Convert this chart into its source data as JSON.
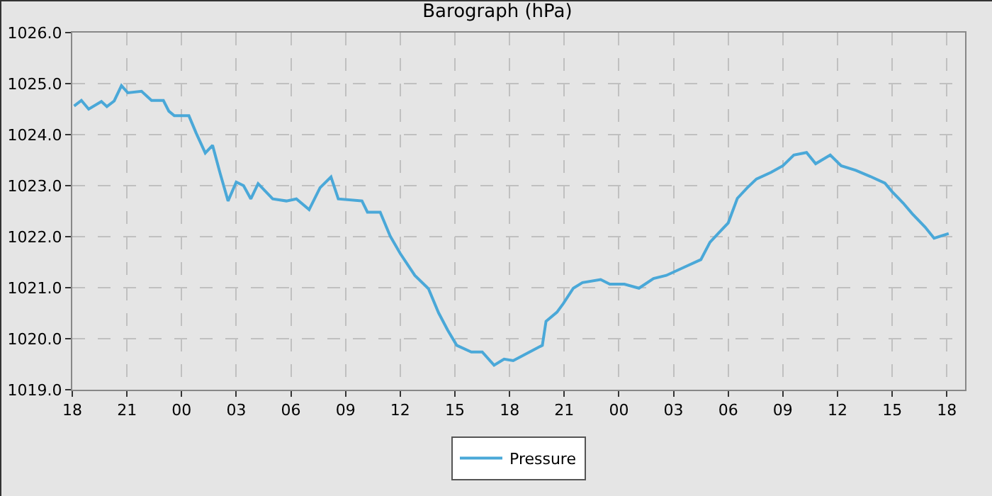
{
  "chart_data": {
    "type": "line",
    "title": "Barograph (hPa)",
    "series": [
      {
        "name": "Pressure",
        "color": "#4aa8d8",
        "x": [
          18.1,
          18.5,
          18.9,
          19.6,
          19.9,
          20.3,
          20.7,
          21.05,
          21.8,
          22.35,
          23.0,
          23.3,
          23.6,
          24.4,
          24.8,
          25.3,
          25.7,
          26.1,
          26.55,
          27.0,
          27.4,
          27.8,
          28.2,
          29.0,
          29.75,
          30.3,
          31.0,
          31.6,
          32.2,
          32.6,
          33.9,
          34.2,
          34.9,
          35.45,
          36.0,
          36.8,
          37.55,
          38.1,
          38.6,
          39.1,
          39.9,
          40.5,
          41.15,
          41.7,
          42.2,
          43.1,
          43.8,
          44.0,
          44.6,
          44.95,
          45.5,
          46.0,
          47.0,
          47.5,
          48.3,
          49.1,
          49.9,
          50.6,
          51.7,
          52.5,
          53.0,
          53.5,
          54.0,
          54.5,
          55.05,
          55.55,
          56.35,
          57.0,
          57.6,
          58.3,
          58.8,
          59.6,
          60.2,
          61.0,
          61.8,
          62.6,
          63.0,
          63.6,
          64.1,
          64.8,
          65.3,
          66.1
        ],
        "values": [
          1024.56,
          1024.67,
          1024.5,
          1024.65,
          1024.55,
          1024.66,
          1024.96,
          1024.82,
          1024.85,
          1024.67,
          1024.67,
          1024.46,
          1024.37,
          1024.37,
          1024.03,
          1023.64,
          1023.79,
          1023.26,
          1022.7,
          1023.07,
          1023.0,
          1022.74,
          1023.04,
          1022.74,
          1022.7,
          1022.74,
          1022.53,
          1022.96,
          1023.17,
          1022.74,
          1022.7,
          1022.48,
          1022.48,
          1022.01,
          1021.67,
          1021.24,
          1020.98,
          1020.51,
          1020.17,
          1019.87,
          1019.74,
          1019.74,
          1019.48,
          1019.6,
          1019.57,
          1019.74,
          1019.87,
          1020.34,
          1020.52,
          1020.69,
          1020.99,
          1021.1,
          1021.16,
          1021.07,
          1021.07,
          1020.99,
          1021.18,
          1021.24,
          1021.42,
          1021.55,
          1021.89,
          1022.08,
          1022.27,
          1022.75,
          1022.96,
          1023.13,
          1023.26,
          1023.39,
          1023.6,
          1023.65,
          1023.43,
          1023.6,
          1023.39,
          1023.3,
          1023.18,
          1023.05,
          1022.88,
          1022.66,
          1022.45,
          1022.19,
          1021.97,
          1022.06
        ]
      }
    ],
    "xlim": [
      18,
      67
    ],
    "xticks": [
      {
        "value": 18,
        "label": "18"
      },
      {
        "value": 21,
        "label": "21"
      },
      {
        "value": 24,
        "label": "00"
      },
      {
        "value": 27,
        "label": "03"
      },
      {
        "value": 30,
        "label": "06"
      },
      {
        "value": 33,
        "label": "09"
      },
      {
        "value": 36,
        "label": "12"
      },
      {
        "value": 39,
        "label": "15"
      },
      {
        "value": 42,
        "label": "18"
      },
      {
        "value": 45,
        "label": "21"
      },
      {
        "value": 48,
        "label": "00"
      },
      {
        "value": 51,
        "label": "03"
      },
      {
        "value": 54,
        "label": "06"
      },
      {
        "value": 57,
        "label": "09"
      },
      {
        "value": 60,
        "label": "12"
      },
      {
        "value": 63,
        "label": "15"
      },
      {
        "value": 66,
        "label": "18"
      }
    ],
    "ylim": [
      1019,
      1026
    ],
    "yticks": [
      {
        "value": 1019,
        "label": "1019.0"
      },
      {
        "value": 1020,
        "label": "1020.0"
      },
      {
        "value": 1021,
        "label": "1021.0"
      },
      {
        "value": 1022,
        "label": "1022.0"
      },
      {
        "value": 1023,
        "label": "1023.0"
      },
      {
        "value": 1024,
        "label": "1024.0"
      },
      {
        "value": 1025,
        "label": "1025.0"
      },
      {
        "value": 1026,
        "label": "1026.0"
      }
    ],
    "grid": true,
    "legend": "bottom",
    "line_style": "solid",
    "marker": "none"
  }
}
